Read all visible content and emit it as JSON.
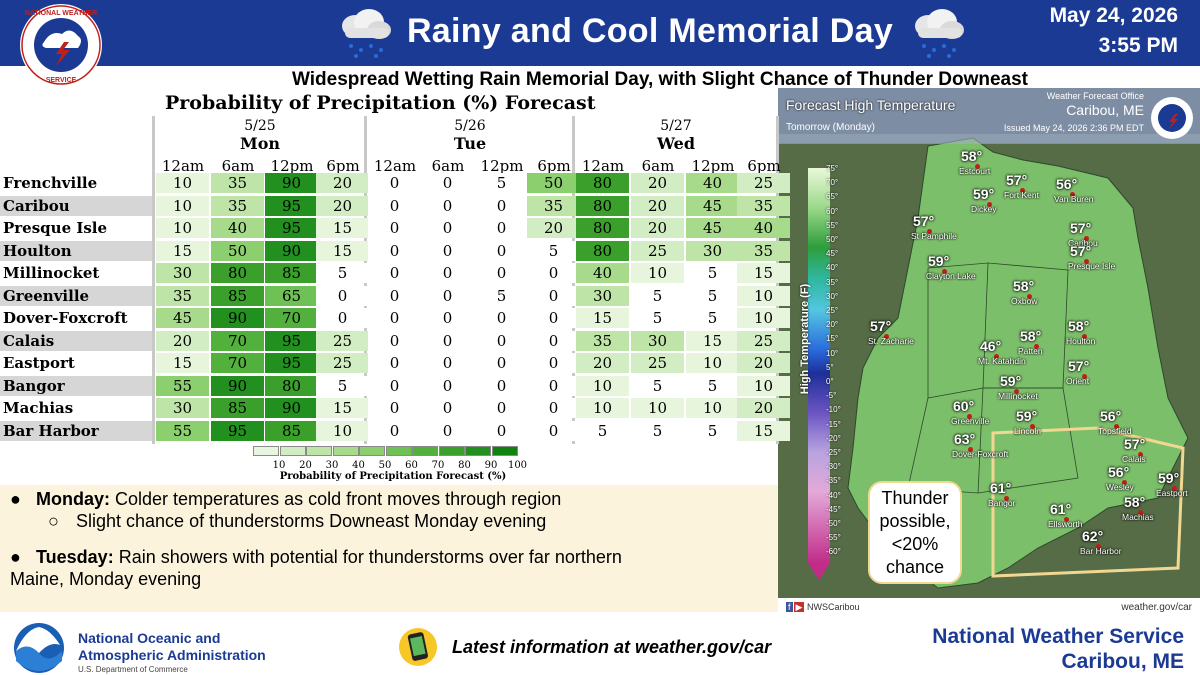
{
  "header": {
    "title": "Rainy and Cool Memorial Day",
    "date": "May 24, 2026",
    "time": "3:55 PM",
    "subtitle": "Widespread Wetting Rain Memorial Day, with Slight Chance of Thunder Downeast",
    "logo_text": "NATIONAL WEATHER SERVICE",
    "icons": [
      "nws-logo-icon",
      "rain-cloud-icon"
    ]
  },
  "pop_table": {
    "title": "Probability of Precipitation (%) Forecast",
    "days": [
      {
        "date": "5/25",
        "name": "Mon"
      },
      {
        "date": "5/26",
        "name": "Tue"
      },
      {
        "date": "5/27",
        "name": "Wed"
      }
    ],
    "hours": [
      "12am",
      "6am",
      "12pm",
      "6pm",
      "12am",
      "6am",
      "12pm",
      "6pm",
      "12am",
      "6am",
      "12pm",
      "6pm"
    ],
    "rows": [
      {
        "name": "Frenchville",
        "values": [
          10,
          35,
          90,
          20,
          0,
          0,
          5,
          50,
          80,
          20,
          40,
          25
        ]
      },
      {
        "name": "Caribou",
        "values": [
          10,
          35,
          95,
          20,
          0,
          0,
          0,
          35,
          80,
          20,
          45,
          35
        ]
      },
      {
        "name": "Presque Isle",
        "values": [
          10,
          40,
          95,
          15,
          0,
          0,
          0,
          20,
          80,
          20,
          45,
          40
        ]
      },
      {
        "name": "Houlton",
        "values": [
          15,
          50,
          90,
          15,
          0,
          0,
          0,
          5,
          80,
          25,
          30,
          35
        ]
      },
      {
        "name": "Millinocket",
        "values": [
          30,
          80,
          85,
          5,
          0,
          0,
          0,
          0,
          40,
          10,
          5,
          15
        ]
      },
      {
        "name": "Greenville",
        "values": [
          35,
          85,
          65,
          0,
          0,
          0,
          5,
          0,
          30,
          5,
          5,
          10
        ]
      },
      {
        "name": "Dover-Foxcroft",
        "values": [
          45,
          90,
          70,
          0,
          0,
          0,
          0,
          0,
          15,
          5,
          5,
          10
        ]
      },
      {
        "name": "Calais",
        "values": [
          20,
          70,
          95,
          25,
          0,
          0,
          0,
          0,
          35,
          30,
          15,
          25
        ]
      },
      {
        "name": "Eastport",
        "values": [
          15,
          70,
          95,
          25,
          0,
          0,
          0,
          0,
          20,
          25,
          10,
          20
        ]
      },
      {
        "name": "Bangor",
        "values": [
          55,
          90,
          80,
          5,
          0,
          0,
          0,
          0,
          10,
          5,
          5,
          10
        ]
      },
      {
        "name": "Machias",
        "values": [
          30,
          85,
          90,
          15,
          0,
          0,
          0,
          0,
          10,
          10,
          10,
          20
        ]
      },
      {
        "name": "Bar Harbor",
        "values": [
          55,
          95,
          85,
          10,
          0,
          0,
          0,
          0,
          5,
          5,
          5,
          15
        ]
      }
    ],
    "legend": {
      "ticks": [
        "10",
        "20",
        "30",
        "40",
        "50",
        "60",
        "70",
        "80",
        "90",
        "100"
      ],
      "colors": [
        "#e8f5e0",
        "#d2ecc3",
        "#bfe4a8",
        "#a8da8c",
        "#8ccf6e",
        "#6ec154",
        "#52b03c",
        "#3a9f2b",
        "#22901e",
        "#108212"
      ],
      "title": "Probability of Precipitation Forecast (%)"
    }
  },
  "bullets": {
    "items": [
      {
        "head": "Monday:",
        "text": " Colder temperatures as cold front moves through region"
      },
      {
        "sub": "Slight chance of thunderstorms Downeast Monday evening"
      },
      {
        "head": "Tuesday:",
        "text": " Rain showers with potential for thunderstorms over far northern"
      },
      {
        "text": "Maine, Monday evening"
      }
    ]
  },
  "map": {
    "title": "Forecast High Temperature",
    "subtitle": "Tomorrow (Monday)",
    "office": "Weather Forecast Office",
    "office_city": "Caribou, ME",
    "issued": "Issued May 24, 2026 2:36 PM EDT",
    "colorbar_label": "High Temperature (F)",
    "colorbar_ticks": [
      "75°",
      "70°",
      "65°",
      "60°",
      "55°",
      "50°",
      "45°",
      "40°",
      "35°",
      "30°",
      "25°",
      "20°",
      "15°",
      "10°",
      "5°",
      "0°",
      "-5°",
      "-10°",
      "-15°",
      "-20°",
      "-25°",
      "-30°",
      "-35°",
      "-40°",
      "-45°",
      "-50°",
      "-55°",
      "-60°"
    ],
    "cities": [
      {
        "temp": "58°",
        "name": "Estcourt"
      },
      {
        "temp": "57°",
        "name": "Fort Kent"
      },
      {
        "temp": "56°",
        "name": "Van Buren"
      },
      {
        "temp": "59°",
        "name": "Dickey"
      },
      {
        "temp": "57°",
        "name": "St Pamphile"
      },
      {
        "temp": "57°",
        "name": "Caribou"
      },
      {
        "temp": "57°",
        "name": "Presque Isle"
      },
      {
        "temp": "59°",
        "name": "Clayton Lake"
      },
      {
        "temp": "58°",
        "name": "Oxbow"
      },
      {
        "temp": "57°",
        "name": "St. Zacharie"
      },
      {
        "temp": "58°",
        "name": "Houlton"
      },
      {
        "temp": "58°",
        "name": "Patten"
      },
      {
        "temp": "46°",
        "name": "Mt. Katahdin"
      },
      {
        "temp": "57°",
        "name": "Orient"
      },
      {
        "temp": "59°",
        "name": "Millinocket"
      },
      {
        "temp": "60°",
        "name": "Greenville"
      },
      {
        "temp": "59°",
        "name": "Lincoln"
      },
      {
        "temp": "56°",
        "name": "Topsfield"
      },
      {
        "temp": "63°",
        "name": "Dover-Foxcroft"
      },
      {
        "temp": "57°",
        "name": "Calais"
      },
      {
        "temp": "61°",
        "name": "Bangor"
      },
      {
        "temp": "56°",
        "name": "Wesley"
      },
      {
        "temp": "59°",
        "name": "Eastport"
      },
      {
        "temp": "58°",
        "name": "Machias"
      },
      {
        "temp": "61°",
        "name": "Ellsworth"
      },
      {
        "temp": "62°",
        "name": "Bar Harbor"
      }
    ],
    "thunder_note": [
      "Thunder",
      "possible,",
      "<20%",
      "chance"
    ],
    "social": "NWSCaribou",
    "website": "weather.gov/car"
  },
  "footer": {
    "noaa_line1": "National Oceanic and",
    "noaa_line2": "Atmospheric Administration",
    "noaa_line3": "U.S. Department of Commerce",
    "latest": "Latest information at weather.gov/car",
    "nws_name": "National Weather Service",
    "nws_city": "Caribou, ME"
  }
}
